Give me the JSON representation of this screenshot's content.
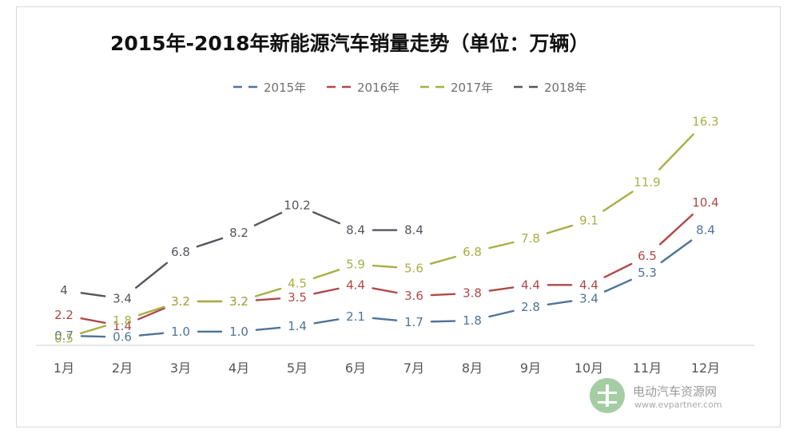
{
  "chart_data": {
    "type": "line",
    "title": "2015年-2018年新能源汽车销量走势（单位：万辆）",
    "categories": [
      "1月",
      "2月",
      "3月",
      "4月",
      "5月",
      "6月",
      "7月",
      "8月",
      "9月",
      "10月",
      "11月",
      "12月"
    ],
    "series": [
      {
        "name": "2015年",
        "color": "#4f7399",
        "values": [
          0.7,
          0.6,
          1.0,
          1.0,
          1.4,
          2.1,
          1.7,
          1.8,
          2.8,
          3.4,
          5.3,
          8.4
        ],
        "labels": [
          "0.7",
          "0.6",
          "1.0",
          "1.0",
          "1.4",
          "2.1",
          "1.7",
          "1.8",
          "2.8",
          "3.4",
          "5.3",
          "8.4"
        ]
      },
      {
        "name": "2016年",
        "color": "#b04848",
        "values": [
          2.2,
          1.4,
          3.2,
          3.2,
          3.5,
          4.4,
          3.6,
          3.8,
          4.4,
          4.4,
          6.5,
          10.4
        ],
        "labels": [
          "2.2",
          "1.4",
          "3.2",
          "3.2",
          "3.5",
          "4.4",
          "3.6",
          "3.8",
          "4.4",
          "4.4",
          "6.5",
          "10.4"
        ]
      },
      {
        "name": "2017年",
        "color": "#a6b043",
        "values": [
          0.5,
          1.8,
          3.2,
          3.2,
          4.5,
          5.9,
          5.6,
          6.8,
          7.8,
          9.1,
          11.9,
          16.3
        ],
        "labels": [
          "0.5",
          "1.8",
          "3.2",
          "3.2",
          "4.5",
          "5.9",
          "5.6",
          "6.8",
          "7.8",
          "9.1",
          "11.9",
          "16.3"
        ]
      },
      {
        "name": "2018年",
        "color": "#55555f",
        "values": [
          4,
          3.4,
          6.8,
          8.2,
          10.2,
          8.4,
          8.4,
          null,
          null,
          null,
          null,
          null
        ],
        "labels": [
          "4",
          "3.4",
          "6.8",
          "8.2",
          "10.2",
          "8.4",
          "8.4",
          "",
          "",
          "",
          "",
          ""
        ]
      }
    ],
    "ylim": [
      0,
      17.5
    ],
    "xlabel": "",
    "ylabel": "",
    "legend": "top"
  },
  "watermark": {
    "name": "电动汽车资源网",
    "url": "www.evpartner.com"
  }
}
